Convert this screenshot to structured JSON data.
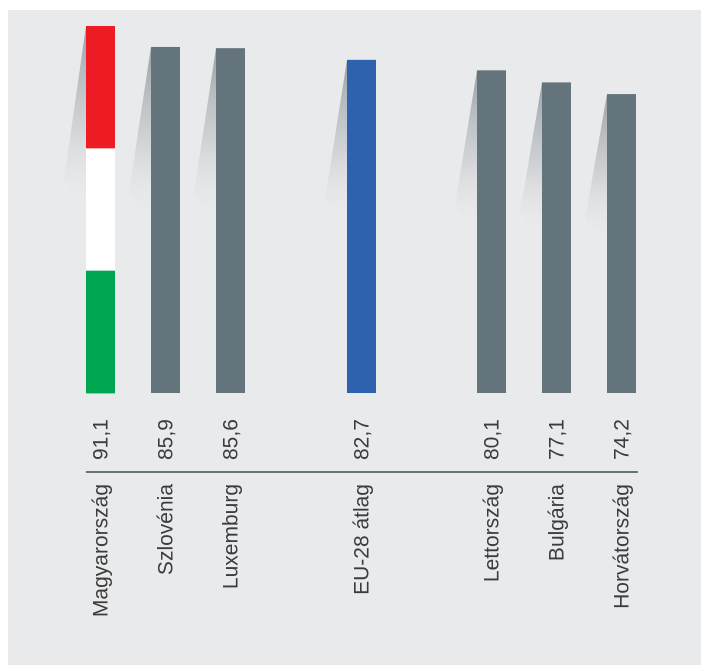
{
  "chart_data": {
    "type": "bar",
    "title": "",
    "xlabel": "",
    "ylabel": "",
    "grid": false,
    "legend": "none",
    "ylim": [
      0,
      91.1
    ],
    "categories": [
      "Magyarország",
      "Szlovénia",
      "Luxemburg",
      "EU-28 átlag",
      "Lettország",
      "Bulgária",
      "Horvátország"
    ],
    "values": [
      91.1,
      85.9,
      85.6,
      82.7,
      80.1,
      77.1,
      74.2
    ],
    "value_labels": [
      "91,1",
      "85,9",
      "85,6",
      "82,7",
      "80,1",
      "77,1",
      "74,2"
    ],
    "colors": {
      "default_bar": "#64747d",
      "eu_average_bar": "#2f62ae",
      "hu_flag_red": "#ed1c24",
      "hu_flag_white": "#ffffff",
      "hu_flag_green": "#00a651",
      "axis_line": "#64747d",
      "background": "#e9eaec"
    }
  }
}
